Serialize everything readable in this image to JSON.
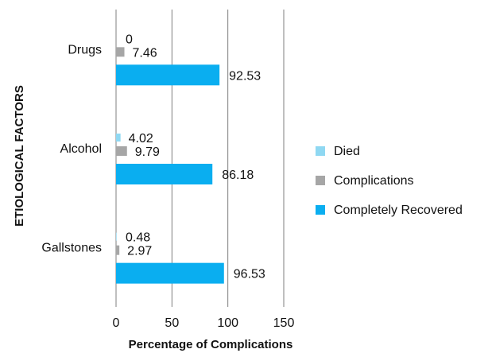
{
  "chart_data": {
    "type": "bar",
    "orientation": "horizontal",
    "categories": [
      "Gallstones",
      "Alcohol",
      "Drugs"
    ],
    "series": [
      {
        "name": "Died",
        "values": [
          0.48,
          4.02,
          0
        ],
        "color": "#8fd8f2"
      },
      {
        "name": "Complications",
        "values": [
          2.97,
          9.79,
          7.46
        ],
        "color": "#a6a6a6"
      },
      {
        "name": "Completely Recovered",
        "values": [
          96.53,
          86.18,
          92.53
        ],
        "color": "#0aaef0"
      }
    ],
    "data_labels": {
      "Died": [
        "0.48",
        "4.02",
        "0"
      ],
      "Complications": [
        "2.97",
        "9.79",
        "7.46"
      ],
      "Completely Recovered": [
        "96.53",
        "86.18",
        "92.53"
      ]
    },
    "xlim": [
      0,
      150
    ],
    "x_ticks": [
      "0",
      "50",
      "100",
      "150"
    ],
    "xlabel": "Percentage of Complications",
    "ylabel": "ETIOLOGICAL FACTORS",
    "title": "",
    "grid": "vertical",
    "legend_position": "right"
  }
}
